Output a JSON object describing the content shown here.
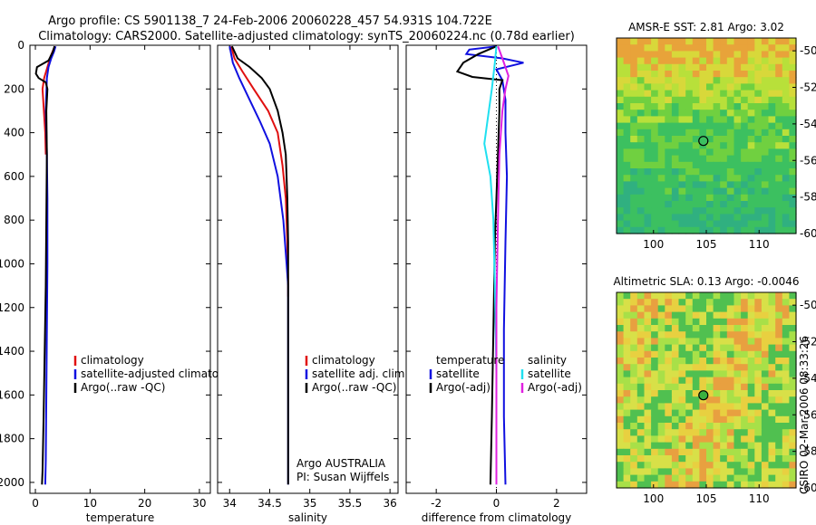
{
  "title": {
    "line1": "Argo profile: CS 5901138_7 24-Feb-2006 20060228_457 54.931S 104.722E",
    "line2": "Climatology: CARS2000. Satellite-adjusted climatology: synTS_20060224.nc (0.78d earlier)"
  },
  "credit": "CSIRO 02-Mar-2006 08:33:26",
  "colors": {
    "climatology": "#e01010",
    "satellite": "#1010e0",
    "argo": "#000000",
    "salinity_sat": "#20e0f0",
    "salinity_argo": "#e020e0"
  },
  "chart_data": [
    {
      "type": "line",
      "name": "temperature-panel",
      "xlabel": "temperature",
      "ylabel": "",
      "xlim": [
        -1,
        32
      ],
      "ylim": [
        2050,
        0
      ],
      "xticks": [
        0,
        10,
        20,
        30
      ],
      "yticks": [
        0,
        200,
        400,
        600,
        800,
        1000,
        1200,
        1400,
        1600,
        1800,
        2000
      ],
      "legend": [
        "climatology",
        "satellite-adjusted climatology",
        "Argo(..raw -QC)"
      ],
      "series": [
        {
          "name": "climatology",
          "color": "#e01010",
          "points": [
            [
              3.6,
              5
            ],
            [
              3.3,
              20
            ],
            [
              2.8,
              50
            ],
            [
              2.2,
              100
            ],
            [
              1.6,
              150
            ],
            [
              1.3,
              200
            ],
            [
              1.5,
              280
            ],
            [
              1.8,
              400
            ],
            [
              1.9,
              500
            ]
          ]
        },
        {
          "name": "satellite-adjusted climatology",
          "color": "#1010e0",
          "points": [
            [
              3.7,
              5
            ],
            [
              3.4,
              30
            ],
            [
              2.9,
              60
            ],
            [
              2.4,
              100
            ],
            [
              2.1,
              150
            ],
            [
              1.9,
              300
            ],
            [
              2.1,
              500
            ],
            [
              2.2,
              700
            ],
            [
              2.2,
              1000
            ],
            [
              2.1,
              1300
            ],
            [
              2.0,
              1600
            ],
            [
              1.9,
              1900
            ],
            [
              1.8,
              2010
            ]
          ]
        },
        {
          "name": "Argo(..raw -QC)",
          "color": "#000000",
          "points": [
            [
              3.5,
              5
            ],
            [
              3.2,
              30
            ],
            [
              2.4,
              70
            ],
            [
              0.3,
              100
            ],
            [
              0.1,
              130
            ],
            [
              0.6,
              150
            ],
            [
              1.9,
              170
            ],
            [
              2.2,
              200
            ],
            [
              2.0,
              300
            ],
            [
              2.1,
              500
            ],
            [
              2.0,
              800
            ],
            [
              1.9,
              1100
            ],
            [
              1.7,
              1400
            ],
            [
              1.5,
              1700
            ],
            [
              1.3,
              1950
            ],
            [
              1.2,
              2010
            ]
          ]
        }
      ]
    },
    {
      "type": "line",
      "name": "salinity-panel",
      "xlabel": "salinity",
      "ylabel": "",
      "xlim": [
        33.85,
        36.1
      ],
      "ylim": [
        2050,
        0
      ],
      "xticks": [
        34,
        34.5,
        35,
        35.5,
        36
      ],
      "xticklabels": [
        "34",
        "34.5",
        "35",
        "35.5",
        "36"
      ],
      "legend": [
        "climatology",
        "satellite adj. clim.",
        "Argo(..raw -QC)"
      ],
      "annotation": [
        "Argo AUSTRALIA",
        "PI: Susan Wijffels"
      ],
      "series": [
        {
          "name": "climatology",
          "color": "#e01010",
          "points": [
            [
              34.02,
              5
            ],
            [
              34.06,
              60
            ],
            [
              34.16,
              120
            ],
            [
              34.3,
              200
            ],
            [
              34.48,
              300
            ],
            [
              34.6,
              400
            ],
            [
              34.66,
              550
            ],
            [
              34.7,
              700
            ],
            [
              34.72,
              900
            ],
            [
              34.73,
              1100
            ],
            [
              34.73,
              1150
            ]
          ]
        },
        {
          "name": "satellite adj. clim.",
          "color": "#1010e0",
          "points": [
            [
              34.0,
              5
            ],
            [
              34.04,
              80
            ],
            [
              34.12,
              150
            ],
            [
              34.25,
              250
            ],
            [
              34.38,
              350
            ],
            [
              34.5,
              450
            ],
            [
              34.6,
              600
            ],
            [
              34.67,
              800
            ],
            [
              34.71,
              1000
            ],
            [
              34.73,
              1100
            ],
            [
              34.73,
              1400
            ],
            [
              34.73,
              1700
            ],
            [
              34.73,
              2010
            ]
          ]
        },
        {
          "name": "Argo(..raw -QC)",
          "color": "#000000",
          "points": [
            [
              34.03,
              5
            ],
            [
              34.1,
              60
            ],
            [
              34.25,
              100
            ],
            [
              34.4,
              150
            ],
            [
              34.5,
              200
            ],
            [
              34.6,
              300
            ],
            [
              34.66,
              400
            ],
            [
              34.7,
              500
            ],
            [
              34.72,
              700
            ],
            [
              34.73,
              900
            ],
            [
              34.73,
              1200
            ],
            [
              34.73,
              1600
            ],
            [
              34.73,
              2010
            ]
          ]
        }
      ]
    },
    {
      "type": "line",
      "name": "difference-panel",
      "xlabel": "difference from climatology",
      "ylabel": "",
      "xlim": [
        -3,
        3
      ],
      "ylim": [
        2050,
        0
      ],
      "xticks": [
        -2,
        0,
        2
      ],
      "xticklabels": [
        "-2",
        "0",
        "2"
      ],
      "legend_temperature": [
        "temperature",
        "satellite",
        "Argo(-adj)"
      ],
      "legend_salinity": [
        "salinity",
        "satellite",
        "Argo(-adj)"
      ],
      "series": [
        {
          "name": "temperature satellite",
          "color": "#1010e0",
          "points": [
            [
              0.0,
              5
            ],
            [
              -0.9,
              20
            ],
            [
              -1.0,
              40
            ],
            [
              0.2,
              60
            ],
            [
              0.9,
              80
            ],
            [
              0.0,
              110
            ],
            [
              0.2,
              160
            ],
            [
              0.3,
              250
            ],
            [
              0.3,
              400
            ],
            [
              0.35,
              600
            ],
            [
              0.3,
              900
            ],
            [
              0.25,
              1300
            ],
            [
              0.25,
              1700
            ],
            [
              0.3,
              2010
            ]
          ]
        },
        {
          "name": "temperature Argo(-adj)",
          "color": "#000000",
          "points": [
            [
              0.0,
              5
            ],
            [
              -0.6,
              40
            ],
            [
              -1.1,
              80
            ],
            [
              -1.3,
              120
            ],
            [
              -0.8,
              145
            ],
            [
              0.2,
              160
            ],
            [
              0.1,
              200
            ],
            [
              0.1,
              300
            ],
            [
              0.05,
              500
            ],
            [
              -0.05,
              900
            ],
            [
              -0.1,
              1300
            ],
            [
              -0.15,
              1700
            ],
            [
              -0.2,
              2010
            ]
          ]
        },
        {
          "name": "salinity satellite",
          "color": "#20e0f0",
          "points": [
            [
              0.0,
              5
            ],
            [
              -0.05,
              80
            ],
            [
              -0.15,
              200
            ],
            [
              -0.3,
              350
            ],
            [
              -0.4,
              450
            ],
            [
              -0.2,
              600
            ],
            [
              -0.1,
              800
            ],
            [
              -0.05,
              1100
            ],
            [
              0.0,
              1500
            ],
            [
              0.0,
              2010
            ]
          ]
        },
        {
          "name": "salinity Argo(-adj)",
          "color": "#e020e0",
          "points": [
            [
              0.05,
              5
            ],
            [
              0.2,
              60
            ],
            [
              0.4,
              140
            ],
            [
              0.3,
              200
            ],
            [
              0.2,
              300
            ],
            [
              0.1,
              500
            ],
            [
              0.05,
              800
            ],
            [
              0.0,
              1200
            ],
            [
              0.0,
              1600
            ],
            [
              0.0,
              2010
            ]
          ]
        }
      ]
    },
    {
      "type": "heatmap",
      "name": "amsre-sst-map",
      "title": "AMSR-E SST: 2.81 Argo: 3.02",
      "xlim": [
        96.5,
        113.5
      ],
      "ylim": [
        -60,
        -49.3
      ],
      "xticks": [
        100,
        105,
        110
      ],
      "yticks": [
        -50,
        -52,
        -54,
        -56,
        -58,
        -60
      ],
      "marker": {
        "lon": 104.722,
        "lat": -54.931
      }
    },
    {
      "type": "heatmap",
      "name": "altimetric-sla-map",
      "title": "Altimetric SLA: 0.13 Argo: -0.0046",
      "xlim": [
        96.5,
        113.5
      ],
      "ylim": [
        -60,
        -49.3
      ],
      "xticks": [
        100,
        105,
        110
      ],
      "yticks": [
        -50,
        -52,
        -54,
        -56,
        -58,
        -60
      ],
      "marker": {
        "lon": 104.722,
        "lat": -54.931
      }
    }
  ]
}
